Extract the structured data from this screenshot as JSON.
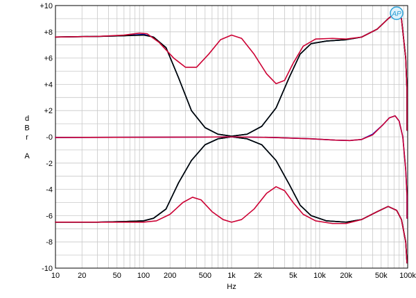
{
  "chart_data": {
    "type": "line",
    "xscale": "log",
    "xlim": [
      10,
      100000
    ],
    "ylim": [
      -10,
      10
    ],
    "xlabel": "Hz",
    "ylabel_lines": [
      "d",
      "B",
      "r",
      "",
      "A"
    ],
    "grid": true,
    "logo_text": "AP",
    "x_tick_labels": [
      {
        "v": 10,
        "t": "10"
      },
      {
        "v": 20,
        "t": "20"
      },
      {
        "v": 50,
        "t": "50"
      },
      {
        "v": 100,
        "t": "100"
      },
      {
        "v": 200,
        "t": "200"
      },
      {
        "v": 500,
        "t": "500"
      },
      {
        "v": 1000,
        "t": "1k"
      },
      {
        "v": 2000,
        "t": "2k"
      },
      {
        "v": 5000,
        "t": "5k"
      },
      {
        "v": 10000,
        "t": "10k"
      },
      {
        "v": 20000,
        "t": "20k"
      },
      {
        "v": 50000,
        "t": "50k"
      },
      {
        "v": 100000,
        "t": "100k"
      }
    ],
    "y_tick_labels": [
      {
        "v": 10,
        "t": "+10"
      },
      {
        "v": 8,
        "t": "+8"
      },
      {
        "v": 6,
        "t": "+6"
      },
      {
        "v": 4,
        "t": "+4"
      },
      {
        "v": 2,
        "t": "+2"
      },
      {
        "v": 0,
        "t": "-0"
      },
      {
        "v": -2,
        "t": "-2"
      },
      {
        "v": -4,
        "t": "-4"
      },
      {
        "v": -6,
        "t": "-6"
      },
      {
        "v": -8,
        "t": "-8"
      },
      {
        "v": -10,
        "t": "-10"
      }
    ],
    "series": [
      {
        "color": "#00cc00",
        "width": 1.6,
        "points": [
          [
            10,
            7.6
          ],
          [
            30,
            7.65
          ],
          [
            60,
            7.7
          ],
          [
            100,
            7.8
          ],
          [
            130,
            7.6
          ],
          [
            180,
            6.8
          ],
          [
            250,
            4.5
          ],
          [
            350,
            2.0
          ],
          [
            500,
            0.7
          ],
          [
            700,
            0.2
          ],
          [
            1000,
            0.05
          ],
          [
            1500,
            0.2
          ],
          [
            2200,
            0.8
          ],
          [
            3200,
            2.2
          ],
          [
            4500,
            4.5
          ],
          [
            6000,
            6.3
          ],
          [
            8000,
            7.1
          ],
          [
            12000,
            7.3
          ],
          [
            20000,
            7.4
          ],
          [
            30000,
            7.6
          ],
          [
            45000,
            8.2
          ],
          [
            60000,
            9.0
          ],
          [
            75000,
            9.5
          ],
          [
            85000,
            9.0
          ],
          [
            95000,
            6.0
          ],
          [
            100000,
            3.5
          ],
          [
            105000,
            0.5
          ]
        ]
      },
      {
        "color": "#0000cc",
        "width": 1.6,
        "points": [
          [
            10,
            7.6
          ],
          [
            30,
            7.65
          ],
          [
            60,
            7.7
          ],
          [
            100,
            7.8
          ],
          [
            130,
            7.6
          ],
          [
            180,
            6.8
          ],
          [
            250,
            4.5
          ],
          [
            350,
            2.0
          ],
          [
            500,
            0.7
          ],
          [
            700,
            0.2
          ],
          [
            1000,
            0.05
          ],
          [
            1500,
            0.2
          ],
          [
            2200,
            0.8
          ],
          [
            3200,
            2.2
          ],
          [
            4500,
            4.5
          ],
          [
            6000,
            6.3
          ],
          [
            8000,
            7.1
          ],
          [
            12000,
            7.3
          ],
          [
            20000,
            7.4
          ],
          [
            30000,
            7.6
          ],
          [
            45000,
            8.2
          ],
          [
            60000,
            9.0
          ],
          [
            75000,
            9.5
          ],
          [
            85000,
            9.0
          ],
          [
            95000,
            6.0
          ],
          [
            100000,
            3.5
          ],
          [
            105000,
            0.5
          ]
        ]
      },
      {
        "color": "#000000",
        "width": 1.6,
        "points": [
          [
            10,
            7.6
          ],
          [
            30,
            7.65
          ],
          [
            60,
            7.7
          ],
          [
            100,
            7.75
          ],
          [
            130,
            7.6
          ],
          [
            180,
            6.8
          ],
          [
            250,
            4.5
          ],
          [
            350,
            2.0
          ],
          [
            500,
            0.7
          ],
          [
            700,
            0.2
          ],
          [
            1000,
            0.05
          ],
          [
            1500,
            0.2
          ],
          [
            2200,
            0.8
          ],
          [
            3200,
            2.2
          ],
          [
            4500,
            4.5
          ],
          [
            6000,
            6.3
          ],
          [
            8000,
            7.1
          ],
          [
            12000,
            7.3
          ],
          [
            20000,
            7.4
          ],
          [
            30000,
            7.6
          ],
          [
            45000,
            8.2
          ],
          [
            60000,
            9.0
          ],
          [
            75000,
            9.5
          ],
          [
            85000,
            9.0
          ],
          [
            95000,
            6.0
          ],
          [
            100000,
            3.5
          ],
          [
            105000,
            0.5
          ]
        ]
      },
      {
        "color": "#00cc00",
        "width": 1.6,
        "points": [
          [
            10,
            -6.5
          ],
          [
            30,
            -6.5
          ],
          [
            60,
            -6.45
          ],
          [
            100,
            -6.4
          ],
          [
            130,
            -6.2
          ],
          [
            180,
            -5.5
          ],
          [
            250,
            -3.5
          ],
          [
            350,
            -1.8
          ],
          [
            500,
            -0.6
          ],
          [
            700,
            -0.15
          ],
          [
            1000,
            0.0
          ],
          [
            1500,
            -0.15
          ],
          [
            2200,
            -0.6
          ],
          [
            3200,
            -1.8
          ],
          [
            4500,
            -3.6
          ],
          [
            6000,
            -5.2
          ],
          [
            8000,
            -6.0
          ],
          [
            12000,
            -6.4
          ],
          [
            20000,
            -6.5
          ],
          [
            30000,
            -6.3
          ],
          [
            45000,
            -5.7
          ],
          [
            60000,
            -5.3
          ],
          [
            75000,
            -5.6
          ],
          [
            85000,
            -6.3
          ],
          [
            95000,
            -8.0
          ],
          [
            105000,
            -9.6
          ]
        ]
      },
      {
        "color": "#0000cc",
        "width": 1.6,
        "points": [
          [
            10,
            -6.5
          ],
          [
            30,
            -6.5
          ],
          [
            60,
            -6.45
          ],
          [
            100,
            -6.4
          ],
          [
            130,
            -6.2
          ],
          [
            180,
            -5.5
          ],
          [
            250,
            -3.5
          ],
          [
            350,
            -1.8
          ],
          [
            500,
            -0.6
          ],
          [
            700,
            -0.15
          ],
          [
            1000,
            0.0
          ],
          [
            1500,
            -0.15
          ],
          [
            2200,
            -0.6
          ],
          [
            3200,
            -1.8
          ],
          [
            4500,
            -3.6
          ],
          [
            6000,
            -5.2
          ],
          [
            8000,
            -6.0
          ],
          [
            12000,
            -6.4
          ],
          [
            20000,
            -6.5
          ],
          [
            30000,
            -6.3
          ],
          [
            45000,
            -5.7
          ],
          [
            60000,
            -5.3
          ],
          [
            75000,
            -5.6
          ],
          [
            85000,
            -6.3
          ],
          [
            95000,
            -8.0
          ],
          [
            105000,
            -9.6
          ]
        ]
      },
      {
        "color": "#000000",
        "width": 1.6,
        "points": [
          [
            10,
            -6.5
          ],
          [
            30,
            -6.5
          ],
          [
            60,
            -6.45
          ],
          [
            100,
            -6.4
          ],
          [
            130,
            -6.2
          ],
          [
            180,
            -5.5
          ],
          [
            250,
            -3.5
          ],
          [
            350,
            -1.8
          ],
          [
            500,
            -0.6
          ],
          [
            700,
            -0.15
          ],
          [
            1000,
            0.0
          ],
          [
            1500,
            -0.15
          ],
          [
            2200,
            -0.6
          ],
          [
            3200,
            -1.8
          ],
          [
            4500,
            -3.6
          ],
          [
            6000,
            -5.2
          ],
          [
            8000,
            -6.0
          ],
          [
            12000,
            -6.4
          ],
          [
            20000,
            -6.5
          ],
          [
            30000,
            -6.3
          ],
          [
            45000,
            -5.7
          ],
          [
            60000,
            -5.3
          ],
          [
            75000,
            -5.6
          ],
          [
            85000,
            -6.3
          ],
          [
            95000,
            -8.0
          ],
          [
            105000,
            -9.6
          ]
        ]
      },
      {
        "color": "#0000cc",
        "width": 1.6,
        "points": [
          [
            10,
            -0.05
          ],
          [
            100,
            -0.03
          ],
          [
            500,
            -0.02
          ],
          [
            1000,
            0.0
          ],
          [
            3000,
            -0.05
          ],
          [
            8000,
            -0.15
          ],
          [
            15000,
            -0.25
          ],
          [
            22000,
            -0.28
          ],
          [
            30000,
            -0.2
          ],
          [
            40000,
            0.2
          ],
          [
            52000,
            0.9
          ],
          [
            62000,
            1.45
          ],
          [
            72000,
            1.6
          ],
          [
            80000,
            1.2
          ],
          [
            88000,
            0.0
          ],
          [
            95000,
            -2.5
          ],
          [
            100000,
            -4.5
          ],
          [
            105000,
            -6.2
          ]
        ]
      },
      {
        "color": "#cc0033",
        "width": 1.6,
        "points": [
          [
            10,
            7.6
          ],
          [
            30,
            7.65
          ],
          [
            60,
            7.75
          ],
          [
            90,
            7.9
          ],
          [
            110,
            7.85
          ],
          [
            150,
            7.2
          ],
          [
            220,
            6.0
          ],
          [
            300,
            5.3
          ],
          [
            400,
            5.3
          ],
          [
            550,
            6.3
          ],
          [
            750,
            7.4
          ],
          [
            1000,
            7.75
          ],
          [
            1300,
            7.5
          ],
          [
            1800,
            6.3
          ],
          [
            2500,
            4.8
          ],
          [
            3200,
            4.05
          ],
          [
            4000,
            4.3
          ],
          [
            5000,
            5.6
          ],
          [
            6500,
            6.9
          ],
          [
            9000,
            7.45
          ],
          [
            14000,
            7.5
          ],
          [
            20000,
            7.45
          ],
          [
            30000,
            7.6
          ],
          [
            45000,
            8.2
          ],
          [
            60000,
            9.0
          ],
          [
            75000,
            9.5
          ],
          [
            85000,
            9.0
          ],
          [
            95000,
            6.0
          ],
          [
            100000,
            3.5
          ],
          [
            105000,
            0.5
          ]
        ]
      },
      {
        "color": "#cc0033",
        "width": 1.6,
        "points": [
          [
            10,
            -6.5
          ],
          [
            30,
            -6.5
          ],
          [
            60,
            -6.5
          ],
          [
            100,
            -6.5
          ],
          [
            140,
            -6.4
          ],
          [
            200,
            -5.9
          ],
          [
            280,
            -5.0
          ],
          [
            360,
            -4.6
          ],
          [
            450,
            -4.8
          ],
          [
            600,
            -5.7
          ],
          [
            800,
            -6.3
          ],
          [
            1000,
            -6.5
          ],
          [
            1300,
            -6.3
          ],
          [
            1800,
            -5.5
          ],
          [
            2500,
            -4.3
          ],
          [
            3200,
            -3.8
          ],
          [
            4000,
            -4.1
          ],
          [
            5000,
            -5.0
          ],
          [
            6500,
            -5.9
          ],
          [
            9000,
            -6.4
          ],
          [
            14000,
            -6.6
          ],
          [
            20000,
            -6.6
          ],
          [
            30000,
            -6.3
          ],
          [
            45000,
            -5.7
          ],
          [
            60000,
            -5.3
          ],
          [
            75000,
            -5.6
          ],
          [
            85000,
            -6.3
          ],
          [
            95000,
            -8.0
          ],
          [
            105000,
            -9.6
          ]
        ]
      },
      {
        "color": "#cc0033",
        "width": 1.6,
        "points": [
          [
            10,
            -0.05
          ],
          [
            100,
            -0.03
          ],
          [
            500,
            -0.02
          ],
          [
            1000,
            0.0
          ],
          [
            3000,
            -0.05
          ],
          [
            8000,
            -0.15
          ],
          [
            15000,
            -0.25
          ],
          [
            22000,
            -0.28
          ],
          [
            30000,
            -0.2
          ],
          [
            40000,
            0.15
          ],
          [
            52000,
            0.9
          ],
          [
            62000,
            1.45
          ],
          [
            72000,
            1.6
          ],
          [
            80000,
            1.2
          ],
          [
            88000,
            0.0
          ],
          [
            95000,
            -2.5
          ],
          [
            100000,
            -4.5
          ],
          [
            105000,
            -6.2
          ]
        ]
      }
    ]
  }
}
